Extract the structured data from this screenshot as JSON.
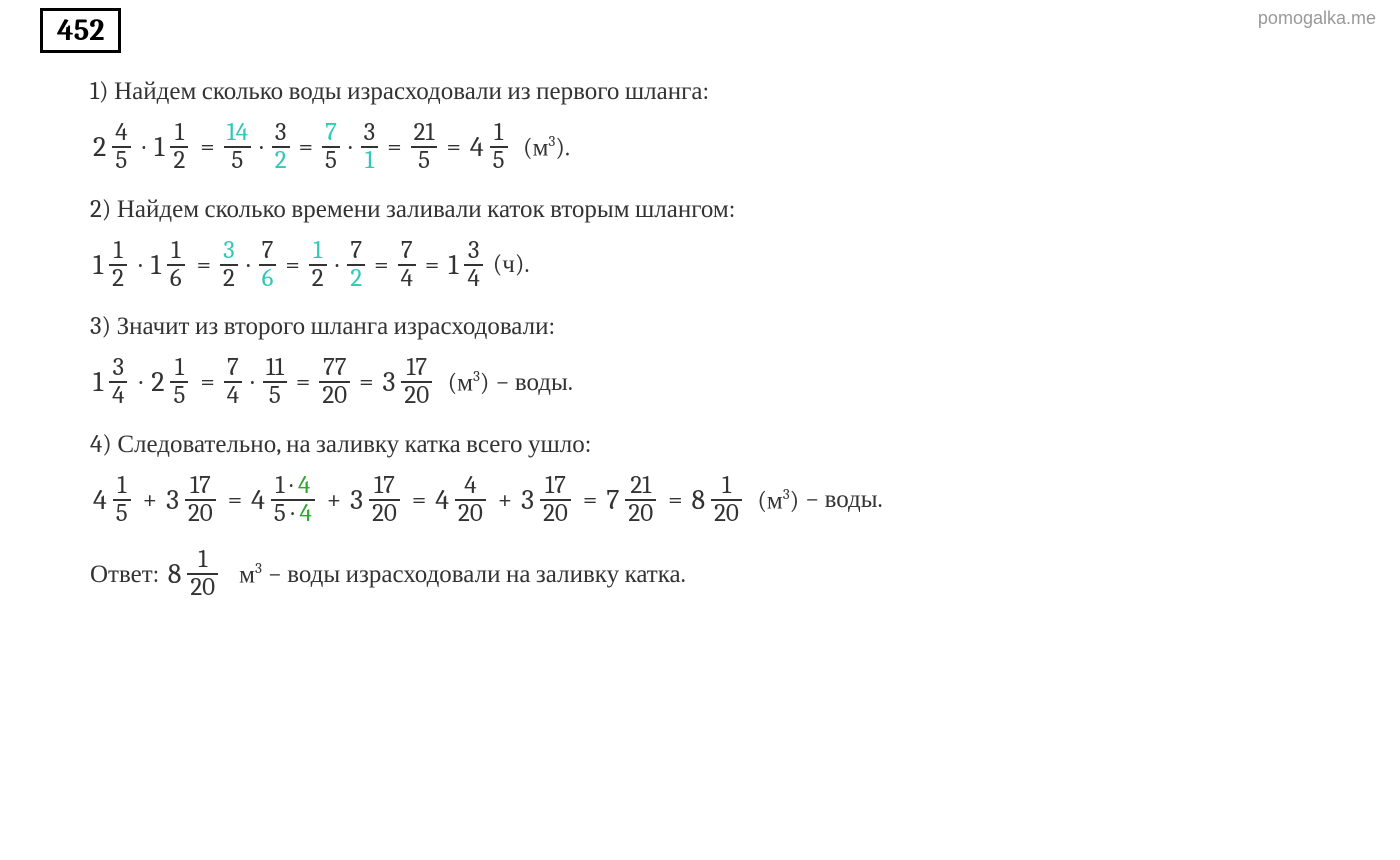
{
  "watermark": "pomogalka.me",
  "problem_number": "452",
  "colors": {
    "text": "#333333",
    "black": "#000000",
    "teal": "#2fc9b8",
    "green": "#2da92d",
    "watermark": "#999999"
  },
  "fonts": {
    "main_family": "Cambria, Georgia, Times New Roman, serif",
    "watermark_family": "Arial, sans-serif",
    "body_size": 25,
    "problem_number_size": 30,
    "whole_size": 28
  },
  "steps": [
    {
      "text": "1) Найдем сколько воды израсходовали из первого шланга:"
    },
    {
      "text": "2) Найдем сколько времени заливали каток вторым шлангом:"
    },
    {
      "text": "3) Значит из второго шланга израсходовали:"
    },
    {
      "text": "4) Следовательно, на заливку катка всего ушло:"
    }
  ],
  "eq1": {
    "m1": {
      "w": "2",
      "n": "4",
      "d": "5"
    },
    "m2": {
      "w": "1",
      "n": "1",
      "d": "2"
    },
    "f1": {
      "n": "14",
      "d": "5",
      "n_color": "teal"
    },
    "f2": {
      "n": "3",
      "d": "2",
      "d_color": "teal"
    },
    "f3": {
      "n": "7",
      "d": "5",
      "n_color": "teal"
    },
    "f4": {
      "n": "3",
      "d": "1",
      "d_color": "teal"
    },
    "f5": {
      "n": "21",
      "d": "5"
    },
    "m3": {
      "w": "4",
      "n": "1",
      "d": "5"
    },
    "unit": "(м³)."
  },
  "eq2": {
    "m1": {
      "w": "1",
      "n": "1",
      "d": "2"
    },
    "m2": {
      "w": "1",
      "n": "1",
      "d": "6"
    },
    "f1": {
      "n": "3",
      "d": "2",
      "n_color": "teal"
    },
    "f2": {
      "n": "7",
      "d": "6",
      "d_color": "teal"
    },
    "f3": {
      "n": "1",
      "d": "2",
      "n_color": "teal"
    },
    "f4": {
      "n": "7",
      "d": "2",
      "d_color": "teal"
    },
    "f5": {
      "n": "7",
      "d": "4"
    },
    "m3": {
      "w": "1",
      "n": "3",
      "d": "4"
    },
    "unit": "(ч)."
  },
  "eq3": {
    "m1": {
      "w": "1",
      "n": "3",
      "d": "4"
    },
    "m2": {
      "w": "2",
      "n": "1",
      "d": "5"
    },
    "f1": {
      "n": "7",
      "d": "4"
    },
    "f2": {
      "n": "11",
      "d": "5"
    },
    "f3": {
      "n": "77",
      "d": "20"
    },
    "m3": {
      "w": "3",
      "n": "17",
      "d": "20"
    },
    "unit": "(м³)",
    "tail": "− воды."
  },
  "eq4": {
    "m1": {
      "w": "4",
      "n": "1",
      "d": "5"
    },
    "m2": {
      "w": "3",
      "n": "17",
      "d": "20"
    },
    "m3": {
      "w": "4",
      "n": "1 · 4",
      "d": "5 · 4",
      "n4_color": "green",
      "d4_color": "green"
    },
    "m4": {
      "w": "3",
      "n": "17",
      "d": "20"
    },
    "m5": {
      "w": "4",
      "n": "4",
      "d": "20"
    },
    "m6": {
      "w": "3",
      "n": "17",
      "d": "20"
    },
    "m7": {
      "w": "7",
      "n": "21",
      "d": "20"
    },
    "m8": {
      "w": "8",
      "n": "1",
      "d": "20"
    },
    "unit": "(м³)",
    "tail": "− воды."
  },
  "answer": {
    "label": "Ответ:",
    "m": {
      "w": "8",
      "n": "1",
      "d": "20"
    },
    "unit": "м³",
    "tail": "− воды израсходовали на заливку катка."
  },
  "ops": {
    "eq": "=",
    "dot": "·",
    "plus": "+"
  }
}
